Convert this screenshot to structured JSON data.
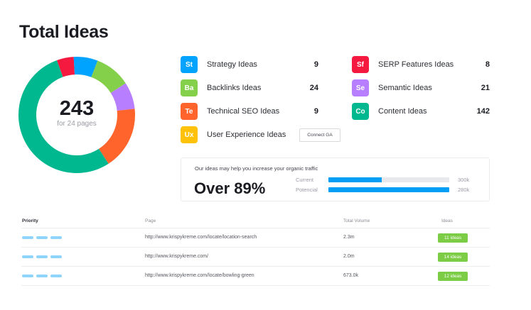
{
  "header": {
    "title": "Total Ideas"
  },
  "summary": {
    "total": "243",
    "subtitle": "for 24 pages"
  },
  "categories": [
    {
      "abbr": "St",
      "label": "Strategy Ideas",
      "count": "9",
      "color": "#00a3ff"
    },
    {
      "abbr": "Ba",
      "label": "Backlinks Ideas",
      "count": "24",
      "color": "#84d04b"
    },
    {
      "abbr": "Te",
      "label": "Technical SEO Ideas",
      "count": "9",
      "color": "#ff642d"
    },
    {
      "abbr": "Ux",
      "label": "User Experience Ideas",
      "count": "",
      "color": "#ffc208"
    },
    {
      "abbr": "Sf",
      "label": "SERP Features Ideas",
      "count": "8",
      "color": "#f5193f"
    },
    {
      "abbr": "Se",
      "label": "Semantic Ideas",
      "count": "21",
      "color": "#b77fff"
    },
    {
      "abbr": "Co",
      "label": "Content Ideas",
      "count": "142",
      "color": "#00b88f"
    }
  ],
  "connect_button": {
    "label": "Connect GA"
  },
  "traffic": {
    "note": "Our ideas may help you increase your organic traffic",
    "headline": "Over 89%",
    "bars": [
      {
        "label": "Current",
        "value": "300k",
        "fill_pct": 44,
        "color": "#009ff5"
      },
      {
        "label": "Potencial",
        "value": "280k",
        "fill_pct": 100,
        "color": "#009ff5"
      }
    ]
  },
  "table": {
    "columns": [
      "Priority",
      "Page",
      "Total Volume",
      "Ideas"
    ],
    "rows": [
      {
        "priority": 3,
        "page": "http://www.krispykreme.com/locate/location-search",
        "volume": "2.3m",
        "ideas": "11 ideas"
      },
      {
        "priority": 3,
        "page": "http://www.krispykreme.com/",
        "volume": "2.0m",
        "ideas": "14 ideas"
      },
      {
        "priority": 3,
        "page": "http://www.krispykreme.com/locate/bowling-green",
        "volume": "673.0k",
        "ideas": "12 ideas"
      }
    ]
  },
  "donut_segments": [
    {
      "name": "SERP Features",
      "color": "#f5193f",
      "start_deg": -20,
      "end_deg": -3
    },
    {
      "name": "Strategy",
      "color": "#00a3ff",
      "start_deg": -3,
      "end_deg": 21
    },
    {
      "name": "Backlinks",
      "color": "#84d04b",
      "start_deg": 21,
      "end_deg": 57
    },
    {
      "name": "Semantic",
      "color": "#b77fff",
      "start_deg": 57,
      "end_deg": 84
    },
    {
      "name": "Technical SEO",
      "color": "#ff642d",
      "start_deg": 84,
      "end_deg": 147
    },
    {
      "name": "Content",
      "color": "#00b88f",
      "start_deg": 147,
      "end_deg": 340
    }
  ]
}
